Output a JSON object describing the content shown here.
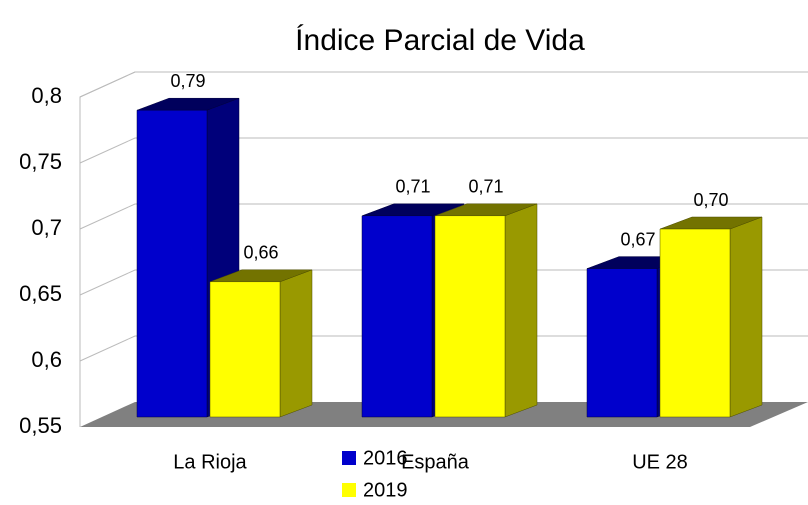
{
  "chart_data": {
    "type": "bar3d",
    "title": "Índice Parcial de Vida",
    "categories": [
      "La Rioja",
      "España",
      "UE 28"
    ],
    "series": [
      {
        "name": "2016",
        "color": "#0000cc",
        "values": [
          0.79,
          0.71,
          0.67
        ],
        "value_labels": [
          "0,79",
          "0,71",
          "0,67"
        ]
      },
      {
        "name": "2019",
        "color": "#ffff00",
        "values": [
          0.66,
          0.71,
          0.7
        ],
        "value_labels": [
          "0,66",
          "0,71",
          "0,70"
        ]
      }
    ],
    "ylim": [
      0.55,
      0.8
    ],
    "yticks": [
      {
        "value": 0.55,
        "label": "0,55"
      },
      {
        "value": 0.6,
        "label": "0,6"
      },
      {
        "value": 0.65,
        "label": "0,65"
      },
      {
        "value": 0.7,
        "label": "0,7"
      },
      {
        "value": 0.75,
        "label": "0,75"
      },
      {
        "value": 0.8,
        "label": "0,8"
      }
    ],
    "grid": true
  }
}
